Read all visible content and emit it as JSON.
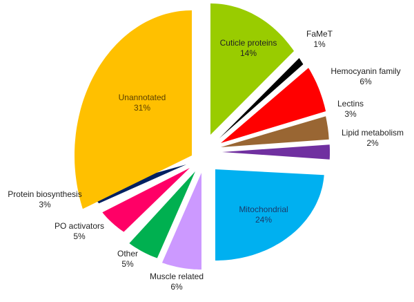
{
  "chart_data": {
    "type": "pie",
    "title": "",
    "exploded": true,
    "slices": [
      {
        "label": "Cuticle proteins",
        "value": 14,
        "pct": "14%",
        "color": "#99cc00"
      },
      {
        "label": "FaMeT",
        "value": 1,
        "pct": "1%",
        "color": "#000000"
      },
      {
        "label": "Hemocyanin family",
        "value": 6,
        "pct": "6%",
        "color": "#ff0000"
      },
      {
        "label": "Lectins",
        "value": 3,
        "pct": "3%",
        "color": "#996633"
      },
      {
        "label": "Lipid metabolism",
        "value": 2,
        "pct": "2%",
        "color": "#7030a0"
      },
      {
        "label": "Mitochondrial",
        "value": 24,
        "pct": "24%",
        "color": "#00b0f0"
      },
      {
        "label": "Muscle related",
        "value": 6,
        "pct": "6%",
        "color": "#cc99ff"
      },
      {
        "label": "Other",
        "value": 5,
        "pct": "5%",
        "color": "#00b050"
      },
      {
        "label": "PO activators",
        "value": 5,
        "pct": "5%",
        "color": "#ff0066"
      },
      {
        "label": "Protein biosynthesis",
        "value": 3,
        "pct": "3%",
        "color": "#002060"
      },
      {
        "label": "Unannotated",
        "value": 31,
        "pct": "31%",
        "color": "#ffc000"
      }
    ]
  }
}
